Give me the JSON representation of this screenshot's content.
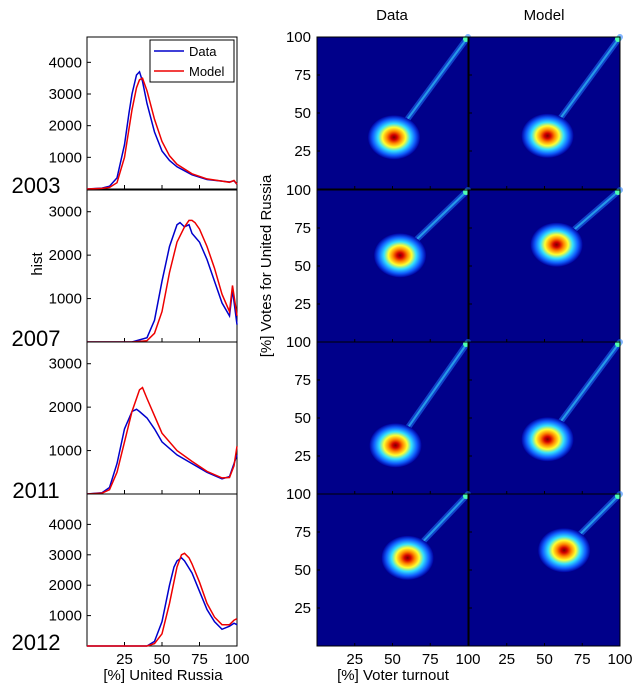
{
  "colors": {
    "data": "#0000cc",
    "model": "#ee0000"
  },
  "column_titles": [
    "Data",
    "Model"
  ],
  "legend": [
    "Data",
    "Model"
  ],
  "hist_ylabel": "hist",
  "hist_xlabel": "[%] United Russia",
  "scatter_ylabel": "[%] Votes for United Russia",
  "scatter_xlabel": "[%] Voter turnout",
  "years": [
    "2003",
    "2007",
    "2011",
    "2012"
  ],
  "chart_data": [
    {
      "type": "line",
      "year": "2003",
      "xlim": [
        0,
        100
      ],
      "ylim": [
        0,
        4800
      ],
      "xticks": [
        25,
        50,
        75,
        100
      ],
      "yticks": [
        1000,
        2000,
        3000,
        4000
      ],
      "series": [
        {
          "name": "Data",
          "x": [
            0,
            10,
            15,
            20,
            25,
            28,
            30,
            33,
            35,
            37,
            40,
            45,
            50,
            55,
            60,
            70,
            80,
            90,
            95,
            98,
            100
          ],
          "y": [
            0,
            30,
            90,
            350,
            1400,
            2400,
            3000,
            3600,
            3700,
            3400,
            2700,
            1800,
            1200,
            900,
            700,
            450,
            300,
            250,
            220,
            260,
            150
          ]
        },
        {
          "name": "Model",
          "x": [
            0,
            10,
            15,
            20,
            25,
            28,
            30,
            33,
            35,
            37,
            40,
            45,
            50,
            55,
            60,
            70,
            80,
            90,
            95,
            98,
            100
          ],
          "y": [
            0,
            20,
            50,
            200,
            1000,
            1900,
            2500,
            3200,
            3450,
            3500,
            3100,
            2200,
            1500,
            1050,
            780,
            480,
            320,
            250,
            210,
            270,
            150
          ]
        }
      ]
    },
    {
      "type": "line",
      "year": "2007",
      "xlim": [
        0,
        100
      ],
      "ylim": [
        0,
        3500
      ],
      "xticks": [
        25,
        50,
        75,
        100
      ],
      "yticks": [
        1000,
        2000,
        3000
      ],
      "series": [
        {
          "name": "Data",
          "x": [
            0,
            30,
            40,
            45,
            50,
            55,
            60,
            62,
            65,
            68,
            70,
            75,
            80,
            85,
            90,
            95,
            97,
            100
          ],
          "y": [
            0,
            0,
            100,
            500,
            1400,
            2200,
            2700,
            2750,
            2650,
            2700,
            2500,
            2300,
            1900,
            1400,
            900,
            600,
            1200,
            400
          ]
        },
        {
          "name": "Model",
          "x": [
            0,
            30,
            40,
            45,
            50,
            55,
            60,
            65,
            68,
            70,
            72,
            75,
            80,
            85,
            90,
            95,
            97,
            100
          ],
          "y": [
            0,
            0,
            30,
            200,
            700,
            1600,
            2300,
            2650,
            2800,
            2800,
            2750,
            2600,
            2200,
            1700,
            1100,
            700,
            1300,
            600
          ]
        }
      ]
    },
    {
      "type": "line",
      "year": "2011",
      "xlim": [
        0,
        100
      ],
      "ylim": [
        0,
        3500
      ],
      "xticks": [
        25,
        50,
        75,
        100
      ],
      "yticks": [
        1000,
        2000,
        3000
      ],
      "series": [
        {
          "name": "Data",
          "x": [
            0,
            10,
            15,
            20,
            25,
            30,
            33,
            35,
            40,
            45,
            50,
            60,
            70,
            80,
            90,
            95,
            98,
            100
          ],
          "y": [
            0,
            30,
            150,
            700,
            1500,
            1900,
            1950,
            1900,
            1750,
            1500,
            1200,
            900,
            700,
            500,
            350,
            400,
            700,
            900
          ]
        },
        {
          "name": "Model",
          "x": [
            0,
            10,
            15,
            20,
            25,
            30,
            33,
            35,
            37,
            40,
            45,
            50,
            60,
            70,
            80,
            90,
            95,
            98,
            100
          ],
          "y": [
            0,
            20,
            100,
            500,
            1200,
            1900,
            2200,
            2400,
            2450,
            2200,
            1800,
            1400,
            1000,
            750,
            520,
            370,
            380,
            650,
            1100
          ]
        }
      ]
    },
    {
      "type": "line",
      "year": "2012",
      "xlim": [
        0,
        100
      ],
      "ylim": [
        0,
        5000
      ],
      "xticks": [
        25,
        50,
        75,
        100
      ],
      "yticks": [
        1000,
        2000,
        3000,
        4000
      ],
      "series": [
        {
          "name": "Data",
          "x": [
            0,
            40,
            45,
            50,
            55,
            58,
            60,
            63,
            65,
            70,
            75,
            80,
            85,
            90,
            95,
            98,
            100
          ],
          "y": [
            0,
            0,
            150,
            800,
            2000,
            2600,
            2800,
            2900,
            2800,
            2400,
            1800,
            1200,
            800,
            550,
            650,
            750,
            700
          ]
        },
        {
          "name": "Model",
          "x": [
            0,
            40,
            45,
            50,
            55,
            60,
            63,
            65,
            68,
            70,
            75,
            80,
            85,
            90,
            95,
            98,
            100
          ],
          "y": [
            0,
            0,
            80,
            400,
            1400,
            2600,
            3000,
            3050,
            2900,
            2700,
            2100,
            1400,
            950,
            700,
            700,
            850,
            900
          ]
        }
      ]
    },
    {
      "type": "heatmap",
      "xlim": [
        0,
        100
      ],
      "ylim": [
        0,
        100
      ],
      "xticks": [
        25,
        50,
        75,
        100
      ],
      "yticks": [
        25,
        50,
        75,
        100
      ],
      "xlabel": "[%] Voter turnout",
      "ylabel": "[%] Votes for United Russia",
      "panels": [
        {
          "year": "2003",
          "column": "Data",
          "peak": [
            51,
            34
          ]
        },
        {
          "year": "2003",
          "column": "Model",
          "peak": [
            52,
            35
          ]
        },
        {
          "year": "2007",
          "column": "Data",
          "peak": [
            55,
            57
          ]
        },
        {
          "year": "2007",
          "column": "Model",
          "peak": [
            58,
            64
          ]
        },
        {
          "year": "2011",
          "column": "Data",
          "peak": [
            52,
            32
          ]
        },
        {
          "year": "2011",
          "column": "Model",
          "peak": [
            52,
            36
          ]
        },
        {
          "year": "2012",
          "column": "Data",
          "peak": [
            60,
            58
          ]
        },
        {
          "year": "2012",
          "column": "Model",
          "peak": [
            63,
            63
          ]
        }
      ]
    }
  ]
}
